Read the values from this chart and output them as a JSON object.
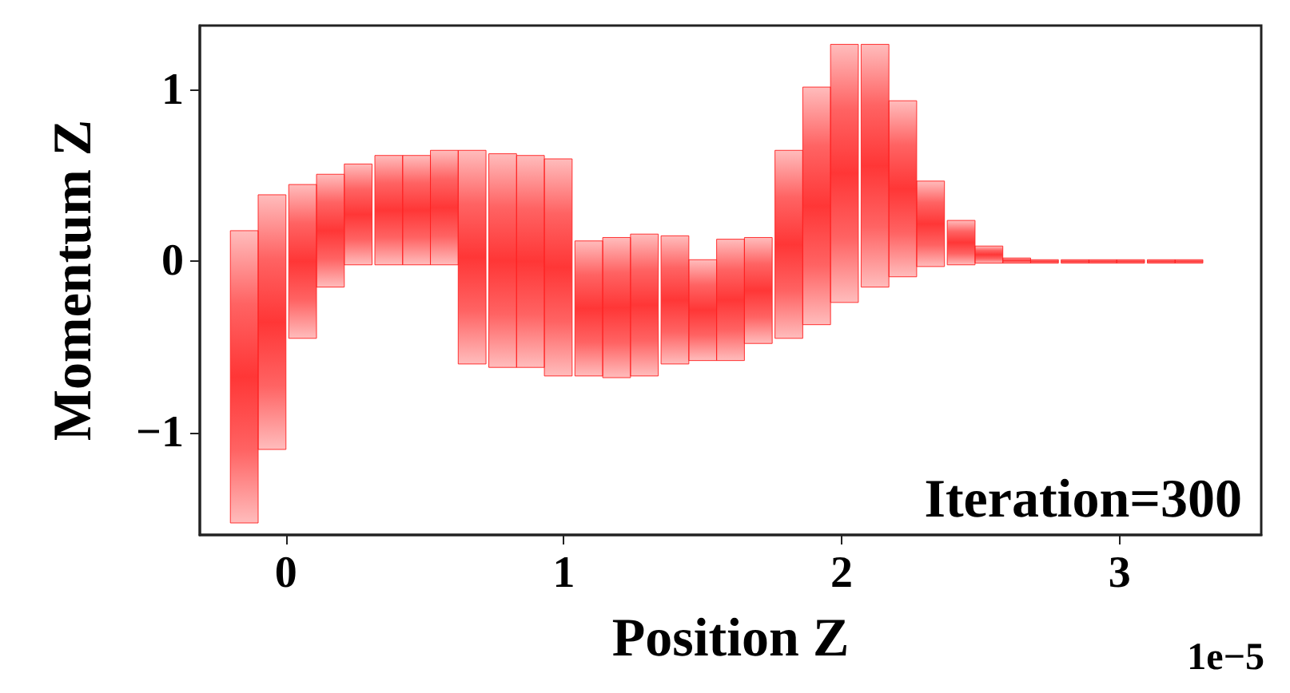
{
  "chart_data": {
    "type": "bar",
    "xlabel": "Position Z",
    "ylabel": "Momentum Z",
    "annotations": [
      "Iteration=300",
      "1e−5"
    ],
    "x": [
      -0.15,
      -0.05,
      0.06,
      0.16,
      0.26,
      0.37,
      0.47,
      0.57,
      0.67,
      0.78,
      0.88,
      0.98,
      1.09,
      1.19,
      1.29,
      1.4,
      1.5,
      1.6,
      1.7,
      1.81,
      1.91,
      2.01,
      2.12,
      2.22,
      2.32,
      2.43,
      2.53,
      2.63,
      2.73,
      2.84,
      2.94,
      3.04,
      3.15,
      3.25
    ],
    "base": [
      -1.53,
      -1.1,
      -0.45,
      -0.15,
      -0.02,
      -0.02,
      -0.02,
      -0.02,
      -0.6,
      -0.62,
      -0.62,
      -0.67,
      -0.67,
      -0.68,
      -0.67,
      -0.6,
      -0.58,
      -0.58,
      -0.48,
      -0.45,
      -0.37,
      -0.24,
      -0.15,
      -0.09,
      -0.03,
      -0.02,
      -0.01,
      -0.01,
      -0.01,
      -0.01,
      -0.01,
      -0.01,
      -0.01,
      -0.01
    ],
    "values": [
      1.71,
      1.49,
      0.9,
      0.66,
      0.59,
      0.64,
      0.64,
      0.67,
      1.25,
      1.25,
      1.24,
      1.27,
      0.79,
      0.82,
      0.83,
      0.75,
      0.59,
      0.71,
      0.62,
      1.1,
      1.39,
      1.51,
      1.42,
      1.03,
      0.5,
      0.26,
      0.1,
      0.03,
      0.02,
      0.02,
      0.02,
      0.02,
      0.02,
      0.02
    ],
    "color": "#ff2020",
    "xlim": [
      -0.31,
      3.51
    ],
    "xticks": [
      0,
      1,
      2,
      3
    ],
    "ylim": [
      -1.6,
      1.38
    ],
    "yticks": [
      -1,
      0,
      1
    ],
    "grid": false
  }
}
